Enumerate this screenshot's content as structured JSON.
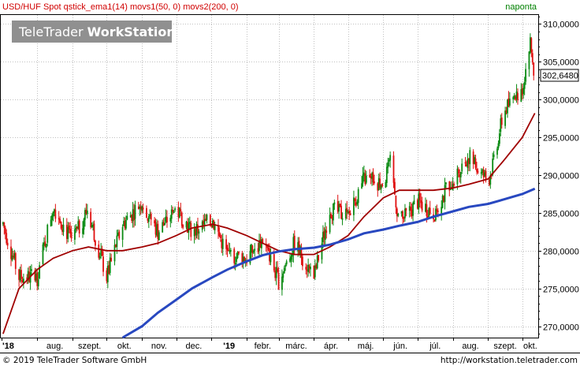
{
  "header": {
    "instrument": "USD/HUF Spot qstick_ema1(14) movs1(50, 0) movs2(200, 0)",
    "period": "naponta"
  },
  "watermark": {
    "brand": "TeleTrader",
    "product": "WorkStation"
  },
  "last_price": "302,6480",
  "footer": {
    "copyright": "© 2019 TeleTrader Software GmbH",
    "url": "http://workstation.teletrader.com"
  },
  "colors": {
    "up": "#0a8a12",
    "down": "#e01010",
    "ma50": "#a00000",
    "ma200": "#2848c0",
    "header_text": "#d00000",
    "period_text": "#008000"
  },
  "chart_data": {
    "type": "line",
    "style": "daily candlestick with moving averages",
    "x_tick_labels": [
      "'18",
      "aug.",
      "szept.",
      "okt.",
      "nov.",
      "dec.",
      "'19",
      "febr.",
      "márc.",
      "ápr.",
      "máj.",
      "jún.",
      "júl.",
      "aug.",
      "szept.",
      "okt."
    ],
    "y_tick_labels": [
      "270,0000",
      "275,0000",
      "280,0000",
      "285,0000",
      "290,0000",
      "295,0000",
      "300,0000",
      "305,0000",
      "310,0000"
    ],
    "ylim": [
      268.5,
      311.2
    ],
    "grid": true,
    "months": [
      "2018-07",
      "2018-08",
      "2018-09",
      "2018-10",
      "2018-11",
      "2018-12",
      "2019-01",
      "2019-02",
      "2019-03",
      "2019-04",
      "2019-05",
      "2019-06",
      "2019-07",
      "2019-08",
      "2019-09",
      "2019-10"
    ],
    "series": [
      {
        "name": "USD/HUF Spot",
        "role": "price",
        "x": [
          "2018-07-02",
          "2018-07-16",
          "2018-08-01",
          "2018-08-15",
          "2018-09-01",
          "2018-09-14",
          "2018-10-01",
          "2018-10-15",
          "2018-11-01",
          "2018-11-15",
          "2018-12-01",
          "2018-12-15",
          "2019-01-02",
          "2019-01-15",
          "2019-02-01",
          "2019-02-15",
          "2019-03-01",
          "2019-03-15",
          "2019-04-01",
          "2019-04-15",
          "2019-05-01",
          "2019-05-15",
          "2019-06-01",
          "2019-06-07",
          "2019-06-15",
          "2019-07-01",
          "2019-07-15",
          "2019-08-01",
          "2019-08-15",
          "2019-09-01",
          "2019-09-15",
          "2019-10-01",
          "2019-10-08",
          "2019-10-12"
        ],
        "values": [
          283.5,
          276.5,
          276.5,
          286.0,
          281.0,
          285.5,
          276.5,
          283.5,
          286.5,
          282.5,
          285.5,
          282.5,
          284.0,
          279.5,
          279.0,
          281.5,
          276.0,
          281.0,
          276.5,
          285.5,
          284.5,
          289.5,
          289.0,
          291.5,
          283.5,
          286.5,
          285.0,
          289.5,
          292.5,
          289.0,
          298.5,
          301.5,
          307.5,
          302.6
        ]
      },
      {
        "name": "movs1(50, 0)",
        "role": "ma50",
        "x": [
          "2018-07-02",
          "2018-07-16",
          "2018-08-01",
          "2018-08-15",
          "2018-09-01",
          "2018-09-15",
          "2018-10-01",
          "2018-10-15",
          "2018-11-01",
          "2018-11-15",
          "2018-12-01",
          "2018-12-15",
          "2019-01-02",
          "2019-01-15",
          "2019-02-01",
          "2019-02-15",
          "2019-03-01",
          "2019-03-15",
          "2019-04-01",
          "2019-04-15",
          "2019-05-01",
          "2019-05-15",
          "2019-06-01",
          "2019-06-15",
          "2019-07-01",
          "2019-07-15",
          "2019-08-01",
          "2019-08-15",
          "2019-09-01",
          "2019-09-15",
          "2019-10-01",
          "2019-10-12"
        ],
        "values": [
          269.0,
          275.0,
          277.5,
          279.0,
          280.0,
          280.5,
          280.0,
          280.0,
          280.5,
          281.0,
          282.0,
          283.0,
          283.5,
          283.0,
          282.0,
          281.0,
          280.0,
          279.5,
          279.5,
          280.5,
          282.0,
          284.5,
          287.0,
          288.0,
          288.0,
          288.0,
          288.3,
          288.8,
          289.5,
          292.0,
          295.0,
          298.2
        ]
      },
      {
        "name": "movs2(200, 0)",
        "role": "ma200",
        "x": [
          "2018-10-15",
          "2018-11-01",
          "2018-11-15",
          "2018-12-01",
          "2018-12-15",
          "2019-01-02",
          "2019-01-15",
          "2019-02-01",
          "2019-02-15",
          "2019-03-01",
          "2019-03-15",
          "2019-04-01",
          "2019-04-15",
          "2019-05-01",
          "2019-05-15",
          "2019-06-01",
          "2019-06-15",
          "2019-07-01",
          "2019-07-15",
          "2019-08-01",
          "2019-08-15",
          "2019-09-01",
          "2019-09-15",
          "2019-10-01",
          "2019-10-12"
        ],
        "values": [
          268.5,
          270.0,
          271.8,
          273.5,
          275.0,
          276.5,
          277.5,
          278.6,
          279.4,
          279.9,
          280.2,
          280.4,
          280.8,
          281.5,
          282.3,
          282.8,
          283.3,
          283.8,
          284.5,
          285.2,
          285.8,
          286.2,
          286.8,
          287.5,
          288.2
        ]
      }
    ]
  }
}
